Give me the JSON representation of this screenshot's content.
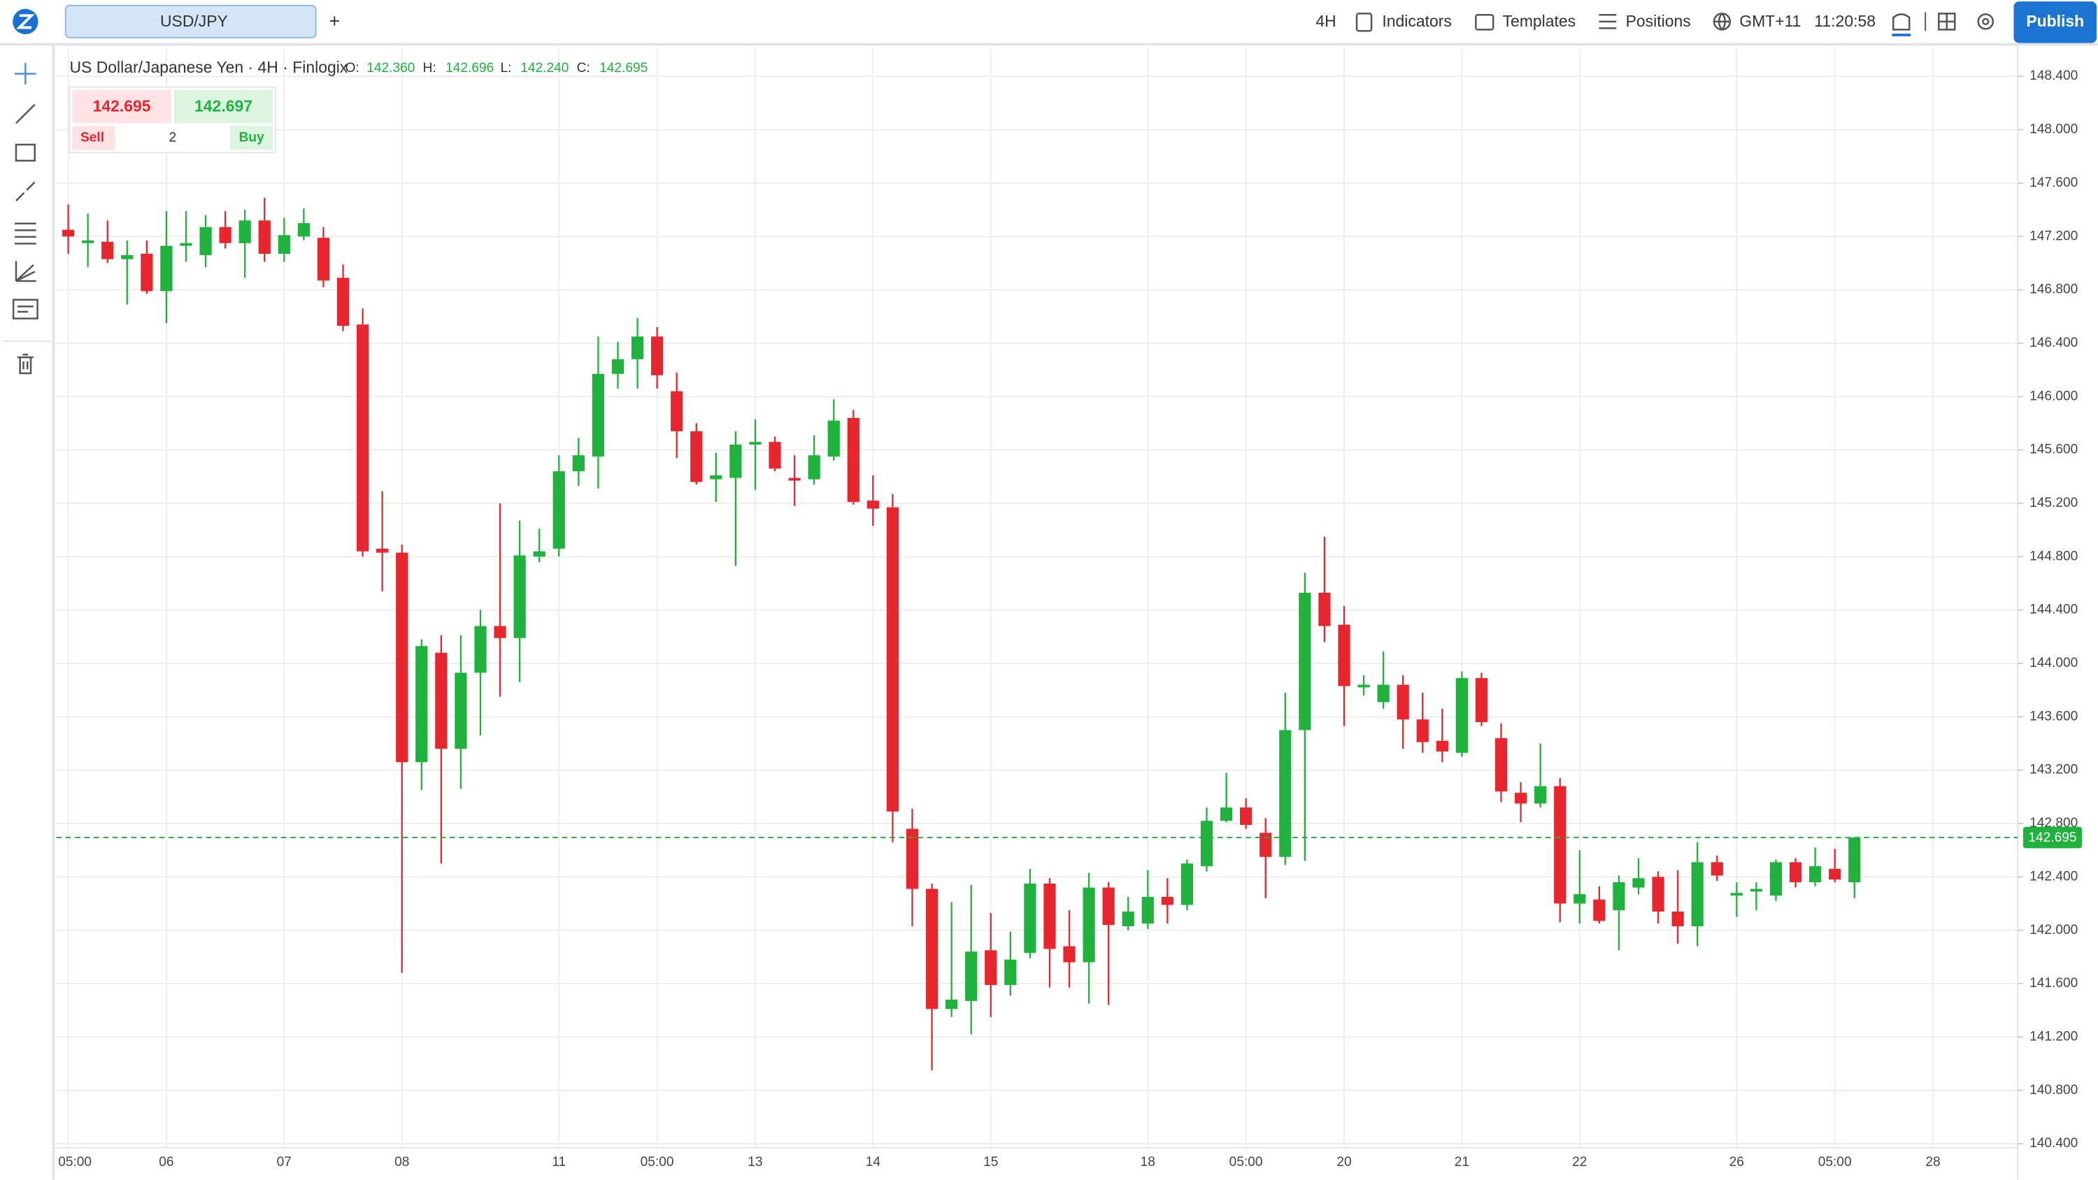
{
  "header": {
    "tab": "USD/JPY",
    "add": "+",
    "interval": "4H",
    "indicators": "Indicators",
    "templates": "Templates",
    "positions": "Positions",
    "timezone": "GMT+11",
    "clock": "11:20:58",
    "publish": "Publish"
  },
  "legend": {
    "title": "US Dollar/Japanese Yen · 4H · Finlogix",
    "ohlc": [
      {
        "key": "O:",
        "value": "142.360"
      },
      {
        "key": "H:",
        "value": "142.696"
      },
      {
        "key": "L:",
        "value": "142.240"
      },
      {
        "key": "C:",
        "value": "142.695"
      }
    ]
  },
  "trade": {
    "sell_price": "142.695",
    "buy_price": "142.697",
    "sell": "Sell",
    "quantity": "2",
    "buy": "Buy"
  },
  "chart_data": {
    "type": "candlestick",
    "categories": [
      "05:00",
      null,
      null,
      null,
      null,
      "06",
      null,
      null,
      null,
      null,
      null,
      "07",
      null,
      null,
      null,
      null,
      null,
      "08",
      null,
      null,
      null,
      null,
      null,
      null,
      null,
      "11",
      null,
      null,
      null,
      null,
      "05:00",
      null,
      null,
      null,
      null,
      "13",
      null,
      null,
      null,
      null,
      null,
      "14",
      null,
      null,
      null,
      null,
      null,
      "15",
      null,
      null,
      null,
      null,
      null,
      null,
      null,
      "18",
      null,
      null,
      null,
      null,
      "05:00",
      null,
      null,
      null,
      null,
      "20",
      null,
      null,
      null,
      null,
      null,
      "21",
      null,
      null,
      null,
      null,
      null,
      "22",
      null,
      null,
      null,
      null,
      null,
      null,
      null,
      "26",
      null,
      null,
      null,
      null,
      "05:00",
      null,
      null,
      null,
      null,
      "28"
    ],
    "open": [
      147.25,
      147.15,
      147.16,
      147.03,
      147.07,
      146.79,
      147.13,
      147.06,
      147.27,
      147.15,
      147.32,
      147.07,
      147.2,
      147.19,
      146.89,
      146.54,
      144.86,
      144.83,
      143.26,
      144.08,
      143.36,
      143.93,
      144.28,
      144.19,
      144.8,
      144.86,
      145.44,
      145.55,
      146.17,
      146.28,
      146.45,
      146.04,
      145.74,
      145.38,
      145.39,
      145.64,
      145.66,
      145.39,
      145.38,
      145.55,
      145.84,
      145.22,
      145.17,
      142.76,
      142.31,
      141.41,
      141.47,
      141.85,
      141.59,
      141.83,
      142.35,
      141.88,
      141.76,
      142.32,
      142.03,
      142.05,
      142.25,
      142.19,
      142.48,
      142.82,
      142.92,
      142.73,
      142.55,
      143.5,
      144.53,
      144.29,
      143.82,
      143.71,
      143.84,
      143.58,
      143.42,
      143.33,
      143.89,
      143.44,
      143.03,
      142.95,
      143.08,
      142.2,
      142.23,
      142.15,
      142.32,
      142.4,
      142.14,
      142.03,
      142.51,
      142.26,
      142.29,
      142.26,
      142.51,
      142.36,
      142.46,
      142.36,
      null,
      null,
      null,
      null
    ],
    "high": [
      147.44,
      147.37,
      147.32,
      147.17,
      147.17,
      147.39,
      147.39,
      147.36,
      147.39,
      147.4,
      147.49,
      147.34,
      147.41,
      147.27,
      146.99,
      146.66,
      145.29,
      144.89,
      144.18,
      144.21,
      144.21,
      144.4,
      145.2,
      145.07,
      145.01,
      145.56,
      145.69,
      146.45,
      146.41,
      146.59,
      146.52,
      146.18,
      145.8,
      145.58,
      145.74,
      145.83,
      145.7,
      145.56,
      145.71,
      145.98,
      145.9,
      145.41,
      145.27,
      142.91,
      142.35,
      142.21,
      142.34,
      142.13,
      141.99,
      142.46,
      142.39,
      142.15,
      142.43,
      142.36,
      142.25,
      142.45,
      142.39,
      142.53,
      142.92,
      143.18,
      142.99,
      142.84,
      143.78,
      144.68,
      144.95,
      144.43,
      143.91,
      144.09,
      143.91,
      143.78,
      143.66,
      143.94,
      143.93,
      143.55,
      143.11,
      143.4,
      143.14,
      142.6,
      142.33,
      142.41,
      142.54,
      142.44,
      142.45,
      142.66,
      142.56,
      142.36,
      142.36,
      142.53,
      142.54,
      142.62,
      142.61,
      142.696,
      null,
      null,
      null,
      null
    ],
    "low": [
      147.07,
      146.97,
      147.0,
      146.69,
      146.77,
      146.55,
      147.01,
      146.97,
      147.11,
      146.89,
      147.01,
      147.01,
      147.17,
      146.82,
      146.49,
      144.8,
      144.54,
      141.68,
      143.05,
      142.5,
      143.06,
      143.46,
      143.75,
      143.86,
      144.76,
      144.8,
      145.33,
      145.31,
      146.06,
      146.06,
      146.06,
      145.54,
      145.34,
      145.21,
      144.73,
      145.3,
      145.44,
      145.18,
      145.34,
      145.52,
      145.19,
      145.03,
      142.66,
      142.03,
      140.95,
      141.35,
      141.22,
      141.35,
      141.51,
      141.79,
      141.57,
      141.57,
      141.45,
      141.44,
      142.0,
      142.01,
      142.05,
      142.15,
      142.44,
      142.81,
      142.76,
      142.24,
      142.49,
      142.52,
      144.16,
      143.53,
      143.76,
      143.66,
      143.36,
      143.33,
      143.26,
      143.3,
      143.53,
      142.96,
      142.81,
      142.92,
      142.06,
      142.05,
      142.05,
      141.85,
      142.27,
      142.05,
      141.9,
      141.88,
      142.37,
      142.1,
      142.15,
      142.22,
      142.32,
      142.33,
      142.36,
      142.24,
      null,
      null,
      null,
      null
    ],
    "close": [
      147.2,
      147.17,
      147.03,
      147.06,
      146.79,
      147.13,
      147.15,
      147.27,
      147.15,
      147.32,
      147.07,
      147.21,
      147.3,
      146.87,
      146.53,
      144.84,
      144.83,
      143.26,
      144.13,
      143.36,
      143.93,
      144.28,
      144.19,
      144.81,
      144.84,
      145.44,
      145.56,
      146.17,
      146.28,
      146.45,
      146.16,
      145.74,
      145.36,
      145.41,
      145.64,
      145.66,
      145.46,
      145.37,
      145.56,
      145.82,
      145.21,
      145.16,
      142.89,
      142.31,
      141.41,
      141.48,
      141.84,
      141.59,
      141.78,
      142.35,
      141.86,
      141.76,
      142.32,
      142.04,
      142.14,
      142.25,
      142.19,
      142.5,
      142.82,
      142.92,
      142.79,
      142.55,
      143.5,
      144.53,
      144.28,
      143.83,
      143.84,
      143.84,
      143.58,
      143.41,
      143.34,
      143.89,
      143.56,
      143.04,
      142.95,
      143.08,
      142.2,
      142.27,
      142.07,
      142.36,
      142.39,
      142.14,
      142.03,
      142.51,
      142.41,
      142.28,
      142.31,
      142.51,
      142.36,
      142.48,
      142.38,
      142.695,
      null,
      null,
      null,
      null
    ],
    "up_color": "#1fb33d",
    "down_color": "#e8262e",
    "last_price": 142.695,
    "ylim": [
      140.37,
      148.61
    ],
    "yticks": [
      {
        "value": 140.4,
        "label": "140.400"
      },
      {
        "value": 140.8,
        "label": "140.800"
      },
      {
        "value": 141.2,
        "label": "141.200"
      },
      {
        "value": 141.6,
        "label": "141.600"
      },
      {
        "value": 142.0,
        "label": "142.000"
      },
      {
        "value": 142.4,
        "label": "142.400"
      },
      {
        "value": 142.8,
        "label": "142.800"
      },
      {
        "value": 143.2,
        "label": "143.200"
      },
      {
        "value": 143.6,
        "label": "143.600"
      },
      {
        "value": 144.0,
        "label": "144.000"
      },
      {
        "value": 144.4,
        "label": "144.400"
      },
      {
        "value": 144.8,
        "label": "144.800"
      },
      {
        "value": 145.2,
        "label": "145.200"
      },
      {
        "value": 145.6,
        "label": "145.600"
      },
      {
        "value": 146.0,
        "label": "146.000"
      },
      {
        "value": 146.4,
        "label": "146.400"
      },
      {
        "value": 146.8,
        "label": "146.800"
      },
      {
        "value": 147.2,
        "label": "147.200"
      },
      {
        "value": 147.6,
        "label": "147.600"
      },
      {
        "value": 148.0,
        "label": "148.000"
      },
      {
        "value": 148.4,
        "label": "148.400"
      }
    ],
    "grid": true
  }
}
